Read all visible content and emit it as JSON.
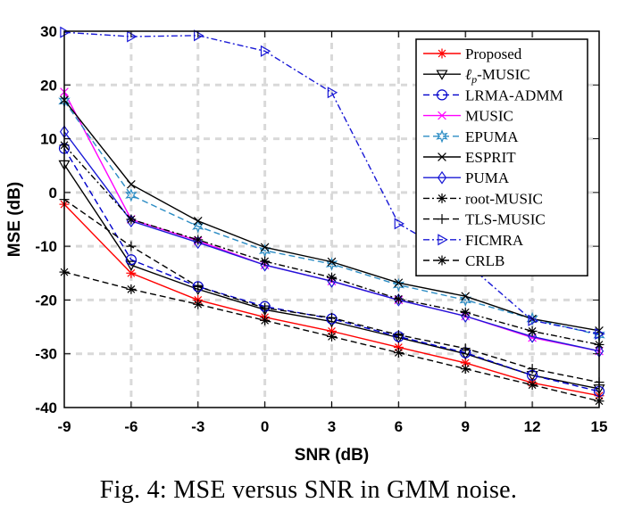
{
  "caption": "Fig. 4: MSE versus SNR in GMM noise.",
  "chart_data": {
    "type": "line",
    "title": "",
    "xlabel": "SNR (dB)",
    "ylabel": "MSE (dB)",
    "x": [
      -9,
      -6,
      -3,
      0,
      3,
      6,
      9,
      12,
      15
    ],
    "xlim": [
      -9,
      15
    ],
    "ylim": [
      -40,
      30
    ],
    "xticks": [
      -9,
      -6,
      -3,
      0,
      3,
      6,
      9,
      12,
      15
    ],
    "yticks": [
      -40,
      -30,
      -20,
      -10,
      0,
      10,
      20,
      30
    ],
    "grid": true,
    "legend_position": "top-right",
    "series": [
      {
        "name": "Proposed",
        "color": "#ff0000",
        "dash": "solid",
        "marker": "asterisk",
        "values": [
          -2.2,
          -15,
          -20,
          -23.2,
          -25.8,
          -28.8,
          -31.7,
          -35.4,
          -37.8
        ]
      },
      {
        "name": "ℓp-MUSIC",
        "legend_main": "ℓ",
        "legend_sub": "p",
        "legend_rest": "-MUSIC",
        "color": "#000000",
        "dash": "solid",
        "marker": "triangle-down",
        "values": [
          5.2,
          -13.5,
          -18,
          -21.8,
          -24,
          -27,
          -30,
          -34,
          -36.5
        ]
      },
      {
        "name": "LRMA-ADMM",
        "color": "#0000cc",
        "dash": "dashed",
        "marker": "circle",
        "values": [
          8.2,
          -12.5,
          -17.5,
          -21.2,
          -23.5,
          -26.8,
          -29.8,
          -34,
          -37
        ]
      },
      {
        "name": "MUSIC",
        "color": "#ff00ff",
        "dash": "solid",
        "marker": "x",
        "values": [
          18.7,
          -5,
          -9,
          -13.5,
          -16.5,
          -20,
          -23,
          -27,
          -29.5
        ]
      },
      {
        "name": "EPUMA",
        "color": "#2b8cc4",
        "dash": "dashed",
        "marker": "star",
        "values": [
          17,
          -0.5,
          -6.3,
          -10.8,
          -13.3,
          -17.2,
          -20,
          -23.5,
          -26.5
        ]
      },
      {
        "name": "ESPRIT",
        "color": "#000000",
        "dash": "solid",
        "marker": "x",
        "values": [
          17.2,
          1.5,
          -5.3,
          -10.2,
          -12.9,
          -16.8,
          -19.3,
          -23.5,
          -25.7
        ]
      },
      {
        "name": "PUMA",
        "color": "#1a1ad6",
        "dash": "solid",
        "marker": "diamond",
        "values": [
          11.3,
          -5.3,
          -9.3,
          -13.5,
          -16.5,
          -20,
          -23,
          -26.8,
          -29.5
        ]
      },
      {
        "name": "root-MUSIC",
        "color": "#000000",
        "dash": "dashdot",
        "marker": "asterisk",
        "values": [
          8.8,
          -5,
          -8.8,
          -12.8,
          -15.8,
          -19.8,
          -22.3,
          -25.8,
          -28.3
        ]
      },
      {
        "name": "TLS-MUSIC",
        "color": "#000000",
        "dash": "dashed",
        "marker": "plus",
        "values": [
          -1.3,
          -10,
          -17.5,
          -21.5,
          -23.3,
          -26.5,
          -29,
          -32.8,
          -35.3
        ]
      },
      {
        "name": "FICMRA",
        "color": "#1a1ad6",
        "dash": "dashdot",
        "marker": "triangle-right",
        "values": [
          29.8,
          29,
          29.2,
          26.3,
          18.6,
          -5.8,
          -13,
          -23.8,
          -26.3
        ]
      },
      {
        "name": "CRLB",
        "color": "#000000",
        "dash": "dashed",
        "marker": "asterisk",
        "values": [
          -14.8,
          -18,
          -20.8,
          -23.8,
          -26.8,
          -29.8,
          -32.8,
          -35.8,
          -38.8
        ]
      }
    ]
  }
}
